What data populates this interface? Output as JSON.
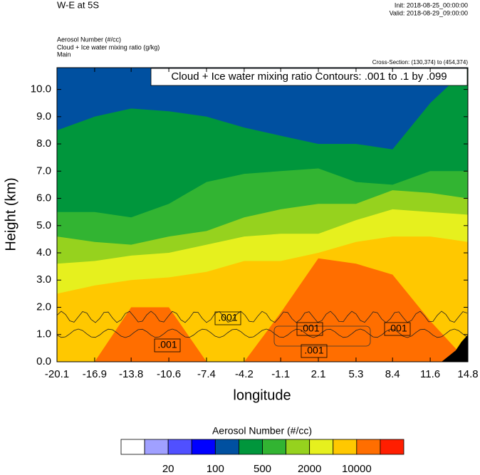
{
  "chart_data": {
    "type": "contour",
    "title": "W-E at 5S",
    "init": "Init: 2018-08-25_00:00:00",
    "valid": "Valid: 2018-08-29_09:00:00",
    "field_names": [
      "Aerosol Number   (#/cc)",
      "Cloud + Ice water mixing ratio   (g/kg)",
      "Main"
    ],
    "cross_section": "Cross-Section: (130,374) to (454,374)",
    "contour_info": "Cloud + Ice water mixing ratio Contours: .001 to .1 by .099",
    "y_label": "Height (km)",
    "x_label": "longitude",
    "xlim": [
      -20.1,
      14.8
    ],
    "xticks": [
      -20.1,
      -16.9,
      -13.8,
      -10.6,
      -7.4,
      -4.2,
      -1.1,
      2.1,
      5.3,
      8.4,
      11.6,
      14.8
    ],
    "ylim": [
      0,
      10.8
    ],
    "yticks": [
      {
        "value": 0,
        "label": "0.0"
      },
      {
        "value": 1,
        "label": "1.0"
      },
      {
        "value": 2,
        "label": "2.0"
      },
      {
        "value": 3,
        "label": "3.0"
      },
      {
        "value": 4,
        "label": "4.0"
      },
      {
        "value": 5,
        "label": "5.0"
      },
      {
        "value": 6,
        "label": "6.0"
      },
      {
        "value": 7,
        "label": "7.0"
      },
      {
        "value": 8,
        "label": "8.0"
      },
      {
        "value": 9,
        "label": "9.0"
      },
      {
        "value": 10,
        "label": "10.0"
      }
    ],
    "background_color": "#0050a0",
    "field": {
      "x": [
        -20.1,
        -16.9,
        -13.8,
        -10.6,
        -7.4,
        -4.2,
        -1.1,
        2.1,
        5.3,
        8.4,
        11.6,
        14.8
      ],
      "layers": [
        {
          "color": "#00963c",
          "top": [
            8.5,
            9.0,
            9.3,
            9.2,
            9.0,
            8.6,
            8.3,
            8.0,
            8.0,
            7.8,
            9.5,
            10.8
          ]
        },
        {
          "color": "#32b432",
          "top": [
            5.5,
            5.5,
            5.3,
            5.8,
            6.6,
            6.9,
            7.0,
            7.1,
            6.6,
            6.5,
            7.0,
            7.0
          ]
        },
        {
          "color": "#96d21e",
          "top": [
            4.6,
            4.4,
            4.3,
            4.6,
            4.8,
            5.3,
            5.6,
            5.8,
            5.8,
            6.3,
            6.2,
            6.0
          ]
        },
        {
          "color": "#e6f01e",
          "top": [
            3.6,
            3.7,
            3.9,
            4.0,
            4.3,
            4.6,
            4.7,
            4.7,
            5.2,
            5.6,
            5.5,
            5.4
          ]
        },
        {
          "color": "#ffc800",
          "top": [
            2.5,
            2.8,
            3.0,
            3.1,
            3.3,
            3.7,
            3.7,
            4.0,
            4.4,
            4.6,
            4.6,
            4.4
          ]
        },
        {
          "color": "#ff6e00",
          "top": [
            0,
            0,
            2.0,
            2.0,
            0,
            0,
            1.8,
            3.8,
            3.6,
            3.2,
            1.5,
            0
          ]
        }
      ]
    },
    "contour_labels": [
      ".001",
      ".001",
      ".001",
      ".001",
      ".001"
    ],
    "colorbar": {
      "title": "Aerosol Number  (#/cc)",
      "colors": [
        "#ffffff",
        "#a0a0ff",
        "#5050ff",
        "#0000ff",
        "#0050a0",
        "#00963c",
        "#32b432",
        "#96d21e",
        "#e6f01e",
        "#ffc800",
        "#ff6e00",
        "#ff1e00"
      ],
      "labels": [
        20,
        100,
        500,
        2000,
        10000
      ]
    }
  }
}
